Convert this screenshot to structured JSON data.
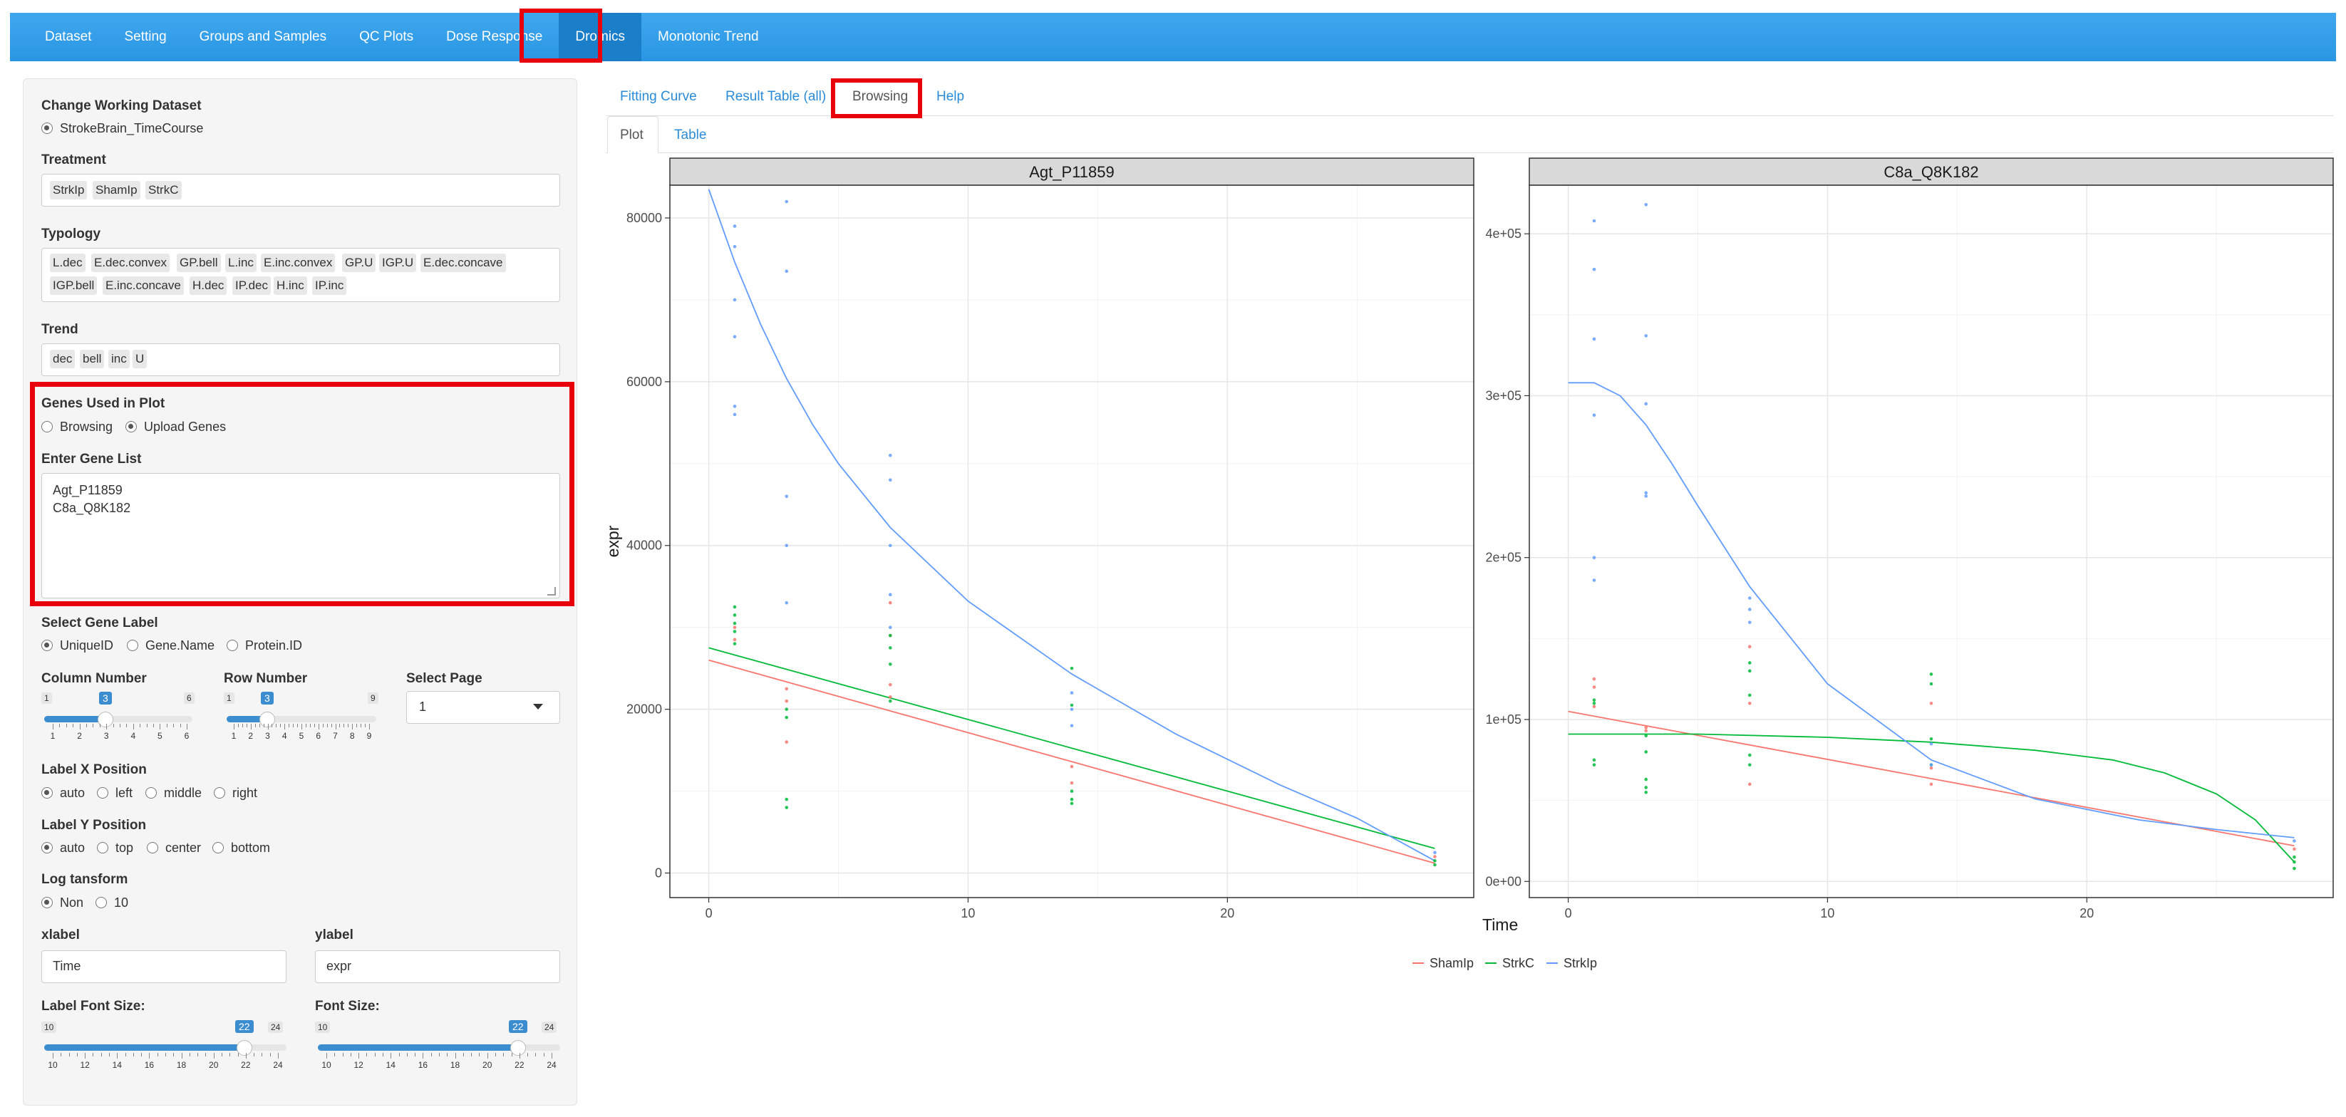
{
  "navbar": {
    "items": [
      {
        "label": "Dataset"
      },
      {
        "label": "Setting"
      },
      {
        "label": "Groups and Samples"
      },
      {
        "label": "QC Plots"
      },
      {
        "label": "Dose Response"
      },
      {
        "label": "Dromics",
        "active": true
      },
      {
        "label": "Monotonic Trend"
      }
    ]
  },
  "sidebar": {
    "dataset_label": "Change Working Dataset",
    "dataset_option": "StrokeBrain_TimeCourse",
    "treatment_label": "Treatment",
    "treatment_tags": [
      "StrkIp",
      "ShamIp",
      "StrkC"
    ],
    "typology_label": "Typology",
    "typology_tags_row1": [
      "L.dec",
      "E.dec.convex",
      "GP.bell",
      "L.inc",
      "E.inc.convex",
      "GP.U",
      "IGP.U",
      "E.dec.concave"
    ],
    "typology_tags_row2": [
      "IGP.bell",
      "E.inc.concave",
      "H.dec",
      "IP.dec",
      "H.inc",
      "IP.inc"
    ],
    "trend_label": "Trend",
    "trend_tags": [
      "dec",
      "bell",
      "inc",
      "U"
    ],
    "genes_used_label": "Genes Used in Plot",
    "genes_used_options": [
      "Browsing",
      "Upload Genes"
    ],
    "gene_list_label": "Enter Gene List",
    "gene_list_value": "Agt_P11859\nC8a_Q8K182",
    "gene_label_label": "Select Gene Label",
    "gene_label_options": [
      "UniqueID",
      "Gene.Name",
      "Protein.ID"
    ],
    "column_number": {
      "label": "Column Number",
      "min": "1",
      "max": "6",
      "value": "3",
      "ticks": [
        "1",
        "2",
        "3",
        "4",
        "5",
        "6"
      ]
    },
    "row_number": {
      "label": "Row Number",
      "min": "1",
      "max": "9",
      "value": "3",
      "ticks": [
        "1",
        "2",
        "3",
        "4",
        "5",
        "6",
        "7",
        "8",
        "9"
      ]
    },
    "select_page": {
      "label": "Select Page",
      "value": "1"
    },
    "label_x": {
      "label": "Label X Position",
      "options": [
        "auto",
        "left",
        "middle",
        "right"
      ]
    },
    "label_y": {
      "label": "Label Y Position",
      "options": [
        "auto",
        "top",
        "center",
        "bottom"
      ]
    },
    "log": {
      "label": "Log tansform",
      "options": [
        "Non",
        "10"
      ]
    },
    "xlabel": {
      "label": "xlabel",
      "value": "Time"
    },
    "ylabel": {
      "label": "ylabel",
      "value": "expr"
    },
    "label_font": {
      "label": "Label Font Size:",
      "min": "10",
      "max": "24",
      "value": "22",
      "ticks": [
        "10",
        "12",
        "14",
        "16",
        "18",
        "20",
        "22",
        "24"
      ]
    },
    "font_size": {
      "label": "Font Size:",
      "min": "10",
      "max": "24",
      "value": "22",
      "ticks": [
        "10",
        "12",
        "14",
        "16",
        "18",
        "20",
        "22",
        "24"
      ]
    }
  },
  "main": {
    "tabs": [
      "Fitting Curve",
      "Result Table (all)",
      "Browsing",
      "Help"
    ],
    "subtabs": [
      "Plot",
      "Table"
    ]
  },
  "chart_data": {
    "type": "scatter",
    "xlabel": "Time",
    "ylabel": "expr",
    "legend": [
      "ShamIp",
      "StrkC",
      "StrkIp"
    ],
    "legend_placement": "bottom",
    "colors": {
      "ShamIp": "#f8766d",
      "StrkC": "#00ba38",
      "StrkIp": "#619cff"
    },
    "panels": [
      {
        "title": "Agt_P11859",
        "xlim": [
          -1.5,
          29.5
        ],
        "ylim": [
          -3000,
          84000
        ],
        "x_ticks": [
          "0",
          "10",
          "20"
        ],
        "x_tick_values": [
          0,
          10,
          20
        ],
        "y_ticks": [
          "0",
          "20000",
          "40000",
          "60000",
          "80000"
        ],
        "y_tick_values": [
          0,
          20000,
          40000,
          60000,
          80000
        ],
        "points": {
          "StrkIp": [
            [
              1,
              79000
            ],
            [
              1,
              76500
            ],
            [
              1,
              70000
            ],
            [
              1,
              65500
            ],
            [
              1,
              57000
            ],
            [
              1,
              56000
            ],
            [
              3,
              82000
            ],
            [
              3,
              73500
            ],
            [
              3,
              46000
            ],
            [
              3,
              40000
            ],
            [
              3,
              33000
            ],
            [
              7,
              51000
            ],
            [
              7,
              48000
            ],
            [
              7,
              40000
            ],
            [
              7,
              34000
            ],
            [
              7,
              30000
            ],
            [
              14,
              22000
            ],
            [
              14,
              20000
            ],
            [
              14,
              18000
            ],
            [
              28,
              2500
            ]
          ],
          "StrkC": [
            [
              1,
              32500
            ],
            [
              1,
              31500
            ],
            [
              1,
              30500
            ],
            [
              1,
              29500
            ],
            [
              1,
              28000
            ],
            [
              3,
              20000
            ],
            [
              3,
              19000
            ],
            [
              3,
              9000
            ],
            [
              3,
              8000
            ],
            [
              7,
              29000
            ],
            [
              7,
              27500
            ],
            [
              7,
              25500
            ],
            [
              7,
              21000
            ],
            [
              14,
              25000
            ],
            [
              14,
              20500
            ],
            [
              14,
              10000
            ],
            [
              14,
              9000
            ],
            [
              14,
              8500
            ],
            [
              28,
              1500
            ],
            [
              28,
              1000
            ]
          ],
          "ShamIp": [
            [
              1,
              30000
            ],
            [
              1,
              28500
            ],
            [
              3,
              22500
            ],
            [
              3,
              21000
            ],
            [
              3,
              16000
            ],
            [
              7,
              33000
            ],
            [
              7,
              29000
            ],
            [
              7,
              23000
            ],
            [
              7,
              21500
            ],
            [
              14,
              13000
            ],
            [
              14,
              11000
            ],
            [
              28,
              2000
            ]
          ]
        },
        "curves": {
          "StrkIp": [
            [
              0,
              83500
            ],
            [
              1,
              74600
            ],
            [
              2,
              67000
            ],
            [
              3,
              60400
            ],
            [
              4,
              54800
            ],
            [
              5,
              50000
            ],
            [
              7,
              42200
            ],
            [
              10,
              33200
            ],
            [
              14,
              24300
            ],
            [
              18,
              17000
            ],
            [
              22,
              10800
            ],
            [
              25,
              6700
            ],
            [
              28,
              1500
            ]
          ],
          "StrkC": [
            [
              0,
              27500
            ],
            [
              28,
              3000
            ]
          ],
          "ShamIp": [
            [
              0,
              26000
            ],
            [
              28,
              1200
            ]
          ]
        }
      },
      {
        "title": "C8a_Q8K182",
        "xlim": [
          -1.5,
          29.5
        ],
        "ylim": [
          -10000,
          430000
        ],
        "x_ticks": [
          "0",
          "10",
          "20"
        ],
        "x_tick_values": [
          0,
          10,
          20
        ],
        "y_ticks": [
          "0e+00",
          "1e+05",
          "2e+05",
          "3e+05",
          "4e+05"
        ],
        "y_tick_values": [
          0,
          100000,
          200000,
          300000,
          400000
        ],
        "points": {
          "StrkIp": [
            [
              1,
              408000
            ],
            [
              1,
              378000
            ],
            [
              1,
              335000
            ],
            [
              1,
              288000
            ],
            [
              1,
              200000
            ],
            [
              1,
              186000
            ],
            [
              3,
              418000
            ],
            [
              3,
              337000
            ],
            [
              3,
              295000
            ],
            [
              3,
              240000
            ],
            [
              3,
              238000
            ],
            [
              7,
              175000
            ],
            [
              7,
              168000
            ],
            [
              7,
              160000
            ],
            [
              14,
              85000
            ],
            [
              14,
              72000
            ],
            [
              28,
              25000
            ]
          ],
          "StrkC": [
            [
              1,
              112000
            ],
            [
              1,
              110000
            ],
            [
              1,
              75000
            ],
            [
              1,
              72000
            ],
            [
              3,
              90000
            ],
            [
              3,
              80000
            ],
            [
              3,
              63000
            ],
            [
              3,
              58000
            ],
            [
              3,
              55000
            ],
            [
              7,
              135000
            ],
            [
              7,
              130000
            ],
            [
              7,
              115000
            ],
            [
              7,
              78000
            ],
            [
              7,
              72000
            ],
            [
              14,
              128000
            ],
            [
              14,
              122000
            ],
            [
              14,
              88000
            ],
            [
              14,
              72000
            ],
            [
              28,
              15000
            ],
            [
              28,
              12000
            ],
            [
              28,
              8000
            ]
          ],
          "ShamIp": [
            [
              1,
              125000
            ],
            [
              1,
              120000
            ],
            [
              1,
              108000
            ],
            [
              3,
              95000
            ],
            [
              3,
              93000
            ],
            [
              7,
              145000
            ],
            [
              7,
              110000
            ],
            [
              7,
              60000
            ],
            [
              14,
              110000
            ],
            [
              14,
              70000
            ],
            [
              14,
              60000
            ],
            [
              28,
              20000
            ]
          ]
        },
        "curves": {
          "StrkIp": [
            [
              0,
              308000
            ],
            [
              1,
              308000
            ],
            [
              2,
              300000
            ],
            [
              3,
              282000
            ],
            [
              4,
              258000
            ],
            [
              5,
              232000
            ],
            [
              7,
              182000
            ],
            [
              10,
              122000
            ],
            [
              14,
              75000
            ],
            [
              18,
              51000
            ],
            [
              22,
              38000
            ],
            [
              25,
              32000
            ],
            [
              28,
              27000
            ]
          ],
          "StrkC": [
            [
              0,
              91000
            ],
            [
              5,
              91000
            ],
            [
              10,
              89000
            ],
            [
              14,
              86000
            ],
            [
              18,
              81000
            ],
            [
              21,
              75000
            ],
            [
              23,
              67000
            ],
            [
              25,
              54000
            ],
            [
              26.5,
              38000
            ],
            [
              28,
              12000
            ]
          ],
          "ShamIp": [
            [
              0,
              105000
            ],
            [
              28,
              22000
            ]
          ]
        }
      }
    ]
  }
}
